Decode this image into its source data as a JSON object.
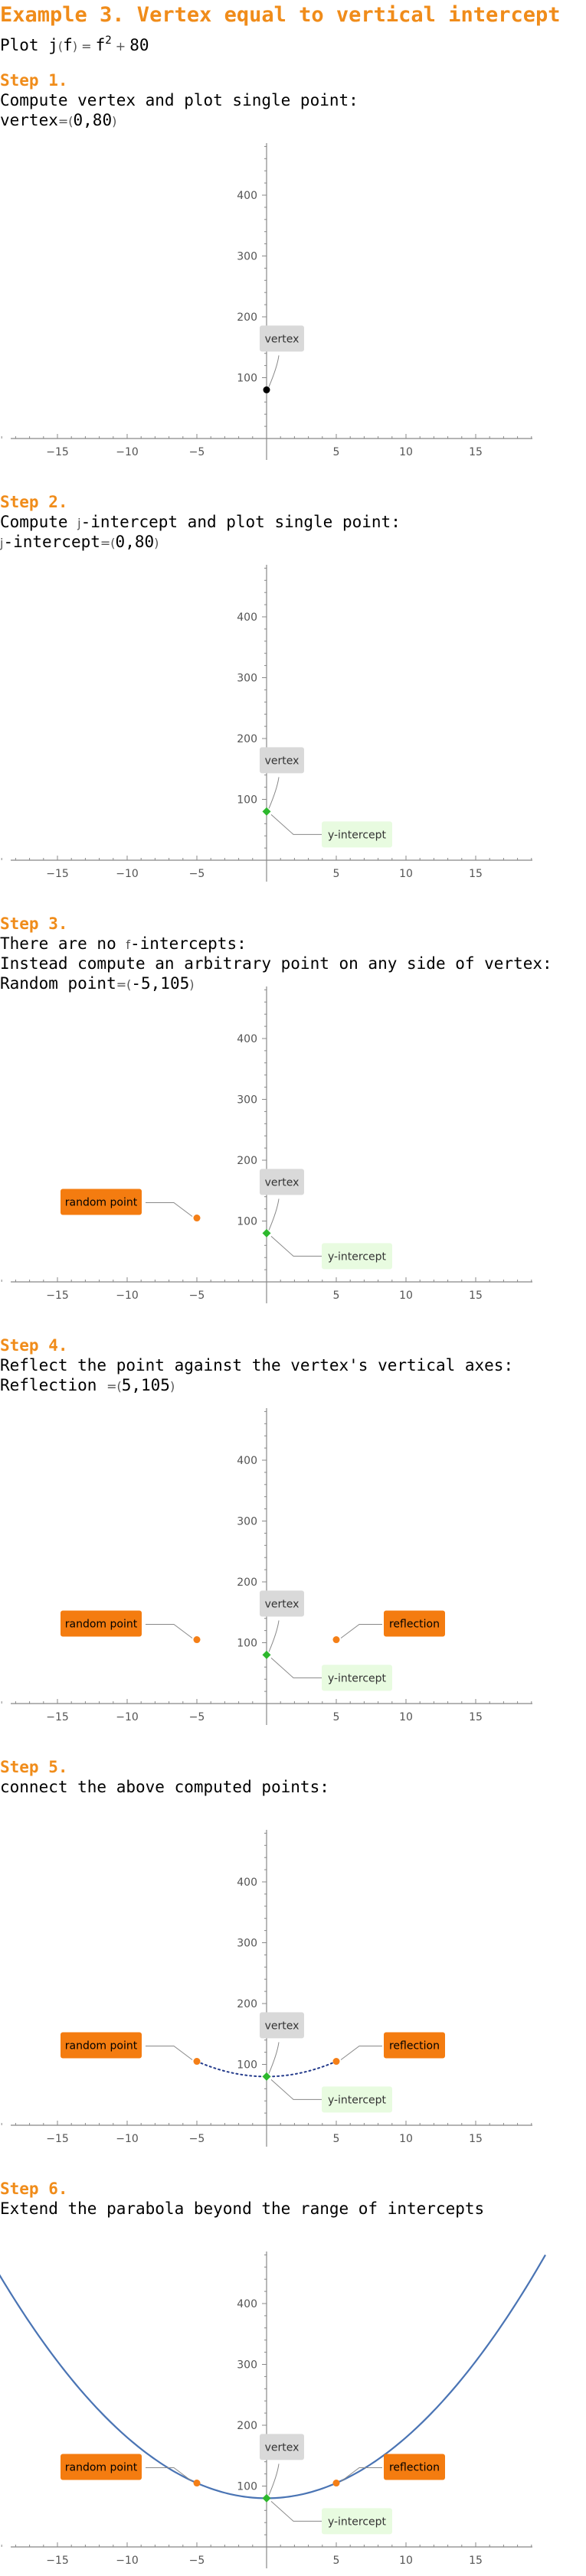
{
  "title": "Example 3. Vertex equal to vertical intercept",
  "plot": {
    "prefix": "Plot ",
    "func": "j",
    "var": "f",
    "rhs_var": "f",
    "exp": "2",
    "const": "80"
  },
  "steps": [
    {
      "label": "Step 1.",
      "lines": [
        {
          "text": "Compute vertex and plot single point:"
        },
        {
          "name": "vertex",
          "x": "0",
          "y": "80",
          "sep": "="
        }
      ]
    },
    {
      "label": "Step 2.",
      "lines": [
        {
          "parts": [
            "Compute ",
            "j",
            "-intercept and plot single point:"
          ],
          "opIndex": 1
        },
        {
          "parts": [
            "j",
            "-intercept"
          ],
          "x": "0",
          "y": "80",
          "sep": "=",
          "opIndex": 0
        }
      ]
    },
    {
      "label": "Step 3.",
      "lines": [
        {
          "parts": [
            "There are no ",
            "f",
            "-intercepts:"
          ],
          "opIndex": 1
        },
        {
          "text": "Instead compute an arbitrary point on any side of vertex:"
        },
        {
          "name": "Random point",
          "x": "-5",
          "y": "105",
          "sep": "="
        }
      ]
    },
    {
      "label": "Step 4.",
      "lines": [
        {
          "text": "Reflect the point against the vertex's vertical axes:"
        },
        {
          "name": "Reflection ",
          "x": "5",
          "y": "105",
          "sep": "="
        }
      ]
    },
    {
      "label": "Step 5.",
      "lines": [
        {
          "text": "connect the above computed points:"
        }
      ]
    },
    {
      "label": "Step 6.",
      "lines": [
        {
          "text": "Extend the parabola beyond the range of intercepts"
        }
      ]
    }
  ],
  "chart_data": {
    "type": "scatter",
    "function": {
      "a": 1,
      "b": 0,
      "c": 80
    },
    "xlim": [
      -19,
      19
    ],
    "ylim": [
      0,
      480
    ],
    "x_ticks": [
      -15,
      -10,
      -5,
      5,
      10,
      15
    ],
    "y_ticks": [
      100,
      200,
      300,
      400
    ],
    "labels": {
      "vertex": "vertex",
      "y_intercept": "y-intercept",
      "random_point": "random point",
      "reflection": "reflection"
    },
    "colors": {
      "vertex_point": "#000000",
      "intercept_point": "#2db82d",
      "side_point": "#f47f17",
      "curve": "#4a74b4",
      "vertex_box": "#d9d9d9",
      "intercept_box": "#e8fbe0",
      "orange_box": "#f47c10"
    },
    "panels": [
      {
        "points": [
          {
            "x": 0,
            "y": 80,
            "kind": "vertex"
          }
        ],
        "callouts": [
          "vertex"
        ],
        "curve": "none"
      },
      {
        "points": [
          {
            "x": 0,
            "y": 80,
            "kind": "intercept"
          }
        ],
        "callouts": [
          "vertex",
          "y_intercept"
        ],
        "curve": "none"
      },
      {
        "points": [
          {
            "x": -5,
            "y": 105,
            "kind": "side"
          },
          {
            "x": 0,
            "y": 80,
            "kind": "intercept"
          }
        ],
        "callouts": [
          "vertex",
          "y_intercept",
          "random_point"
        ],
        "curve": "none"
      },
      {
        "points": [
          {
            "x": -5,
            "y": 105,
            "kind": "side"
          },
          {
            "x": 5,
            "y": 105,
            "kind": "side"
          },
          {
            "x": 0,
            "y": 80,
            "kind": "intercept"
          }
        ],
        "callouts": [
          "vertex",
          "y_intercept",
          "random_point",
          "reflection"
        ],
        "curve": "none"
      },
      {
        "points": [
          {
            "x": -5,
            "y": 105,
            "kind": "side"
          },
          {
            "x": 5,
            "y": 105,
            "kind": "side"
          },
          {
            "x": 0,
            "y": 80,
            "kind": "intercept"
          }
        ],
        "callouts": [
          "vertex",
          "y_intercept",
          "random_point",
          "reflection"
        ],
        "curve": "dotted",
        "range": [
          -5,
          5
        ]
      },
      {
        "points": [
          {
            "x": -5,
            "y": 105,
            "kind": "side"
          },
          {
            "x": 5,
            "y": 105,
            "kind": "side"
          },
          {
            "x": 0,
            "y": 80,
            "kind": "intercept"
          }
        ],
        "callouts": [
          "vertex",
          "y_intercept",
          "random_point",
          "reflection"
        ],
        "curve": "solid",
        "range": [
          -20,
          20
        ]
      }
    ]
  }
}
